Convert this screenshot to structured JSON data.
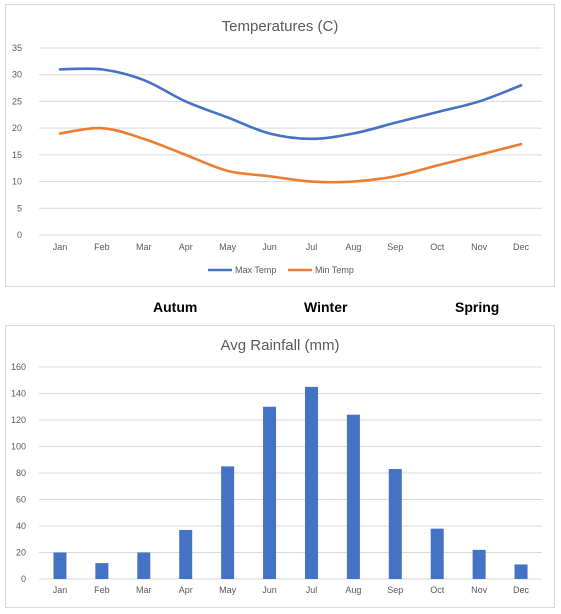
{
  "seasons": {
    "autumn": "Autum",
    "winter": "Winter",
    "spring": "Spring"
  },
  "chart_data": [
    {
      "type": "line",
      "title": "Temperatures (C)",
      "categories": [
        "Jan",
        "Feb",
        "Mar",
        "Apr",
        "May",
        "Jun",
        "Jul",
        "Aug",
        "Sep",
        "Oct",
        "Nov",
        "Dec"
      ],
      "series": [
        {
          "name": "Max Temp",
          "color": "#4472c4",
          "values": [
            31,
            31,
            29,
            25,
            22,
            19,
            18,
            19,
            21,
            23,
            25,
            28
          ]
        },
        {
          "name": "Min Temp",
          "color": "#ed7d31",
          "values": [
            19,
            20,
            18,
            15,
            12,
            11,
            10,
            10,
            11,
            13,
            15,
            17
          ]
        }
      ],
      "ylim": [
        0,
        35
      ],
      "yticks": [
        0,
        5,
        10,
        15,
        20,
        25,
        30,
        35
      ],
      "grid": true,
      "legend": "bottom"
    },
    {
      "type": "bar",
      "title": "Avg Rainfall (mm)",
      "categories": [
        "Jan",
        "Feb",
        "Mar",
        "Apr",
        "May",
        "Jun",
        "Jul",
        "Aug",
        "Sep",
        "Oct",
        "Nov",
        "Dec"
      ],
      "series": [
        {
          "color": "#4472c4",
          "values": [
            20,
            12,
            20,
            37,
            85,
            130,
            145,
            124,
            83,
            38,
            22,
            11
          ]
        }
      ],
      "ylim": [
        0,
        160
      ],
      "yticks": [
        0,
        20,
        40,
        60,
        80,
        100,
        120,
        140,
        160
      ],
      "grid": true,
      "legend": "none"
    }
  ]
}
